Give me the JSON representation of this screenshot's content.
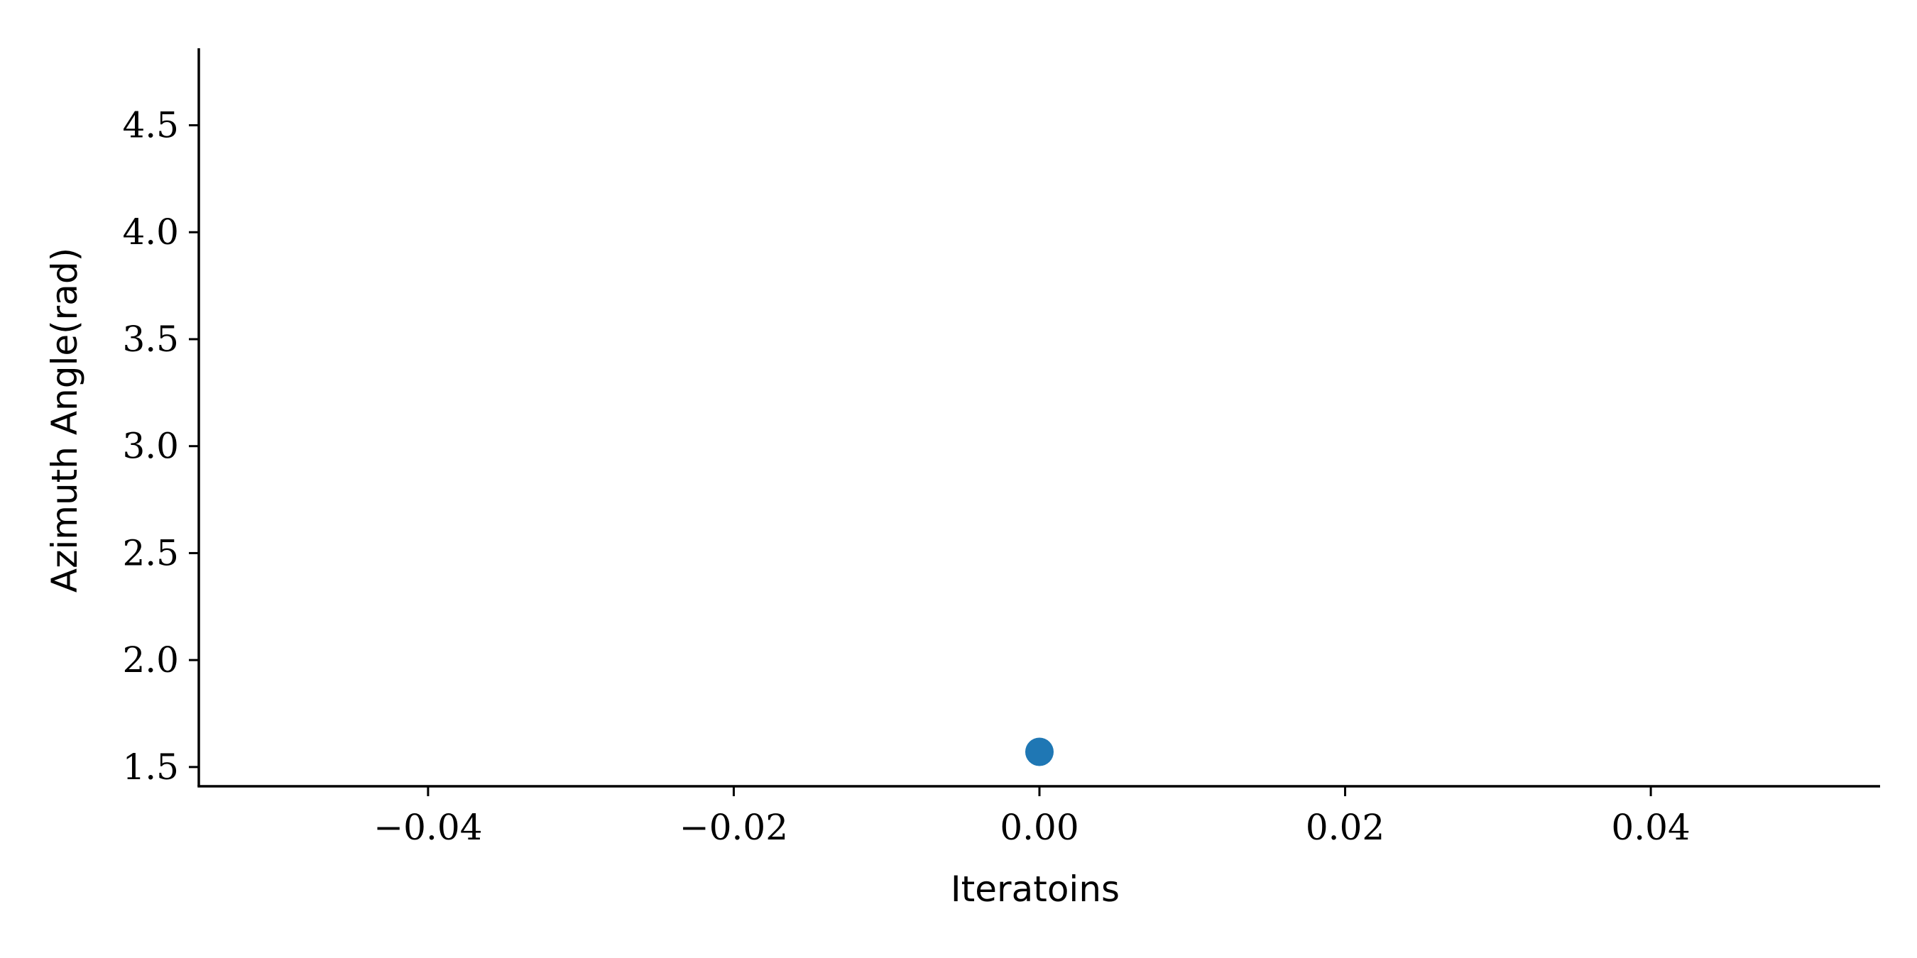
{
  "chart_data": {
    "type": "scatter",
    "xlabel": "Iteratoins",
    "ylabel": "Azimuth Angle(rad)",
    "xlim": [
      -0.055,
      0.055
    ],
    "ylim": [
      1.41,
      4.86
    ],
    "xticks": [
      -0.04,
      -0.02,
      0.0,
      0.02,
      0.04
    ],
    "xtick_labels": [
      "−0.04",
      "−0.02",
      "0.00",
      "0.02",
      "0.04"
    ],
    "yticks": [
      1.5,
      2.0,
      2.5,
      3.0,
      3.5,
      4.0,
      4.5
    ],
    "ytick_labels": [
      "1.5",
      "2.0",
      "2.5",
      "3.0",
      "3.5",
      "4.0",
      "4.5"
    ],
    "grid": false,
    "series": [
      {
        "x": [
          0.0
        ],
        "y": [
          1.571
        ],
        "color": "#1f77b4"
      }
    ]
  }
}
